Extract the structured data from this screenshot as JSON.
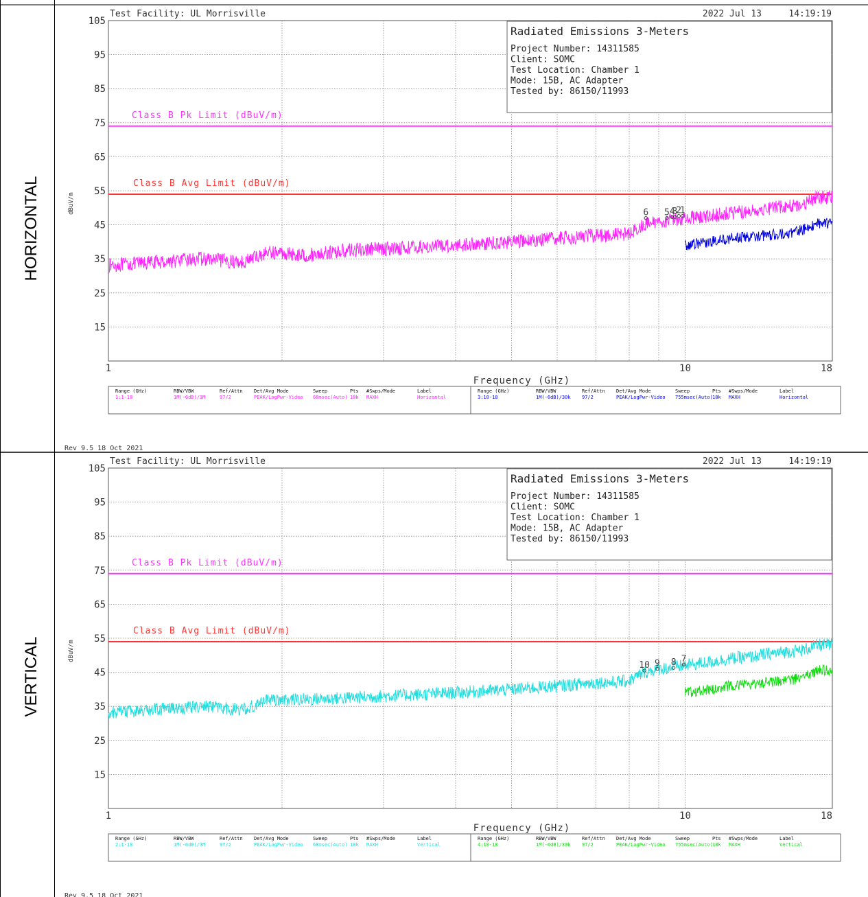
{
  "row_labels": [
    "HORIZONTAL",
    "VERTICAL"
  ],
  "chart_data": [
    {
      "type": "line",
      "facility": "Test Facility:  UL Morrisville",
      "date": "2022 Jul 13",
      "time": "14:19:19",
      "info_title": "Radiated Emissions 3-Meters",
      "info_lines": [
        "Project Number: 14311585",
        "Client: SOMC",
        "Test Location: Chamber 1",
        "Mode: 15B, AC Adapter",
        "Tested by: 86150/11993"
      ],
      "xlabel": "Frequency (GHz)",
      "ylabel": "dBuV/m",
      "xscale": "log",
      "xlim": [
        1,
        18
      ],
      "ylim": [
        5,
        105
      ],
      "yticks": [
        "105",
        "95",
        "85",
        "75",
        "65",
        "55",
        "45",
        "35",
        "25",
        "15"
      ],
      "xticks": [
        {
          "label": "1",
          "value": 1
        },
        {
          "label": "10",
          "value": 10
        },
        {
          "label": "18",
          "value": 18
        }
      ],
      "grid": true,
      "limits": [
        {
          "name": "Class B Pk Limit (dBuV/m)",
          "value": 74,
          "color": "#ff33ff"
        },
        {
          "name": "Class B Avg Limit (dBuV/m)",
          "value": 54,
          "color": "#ff3333"
        }
      ],
      "series": [
        {
          "color": "#ff22ff",
          "noise": 1.3,
          "x": [
            1,
            1.2,
            1.45,
            1.7,
            1.9,
            2.2,
            2.6,
            3,
            3.5,
            4,
            4.5,
            5,
            5.5,
            6,
            6.5,
            7,
            7.5,
            8,
            8.5,
            9,
            9.5,
            10,
            11,
            12,
            13,
            14,
            15,
            16,
            17,
            18
          ],
          "y": [
            33,
            34,
            35,
            34,
            37,
            36,
            37.5,
            38,
            38.5,
            39,
            39.5,
            40,
            40.5,
            41,
            41.5,
            42,
            42,
            42.5,
            45,
            46,
            46.5,
            47,
            47.5,
            48.5,
            49,
            50,
            50.5,
            51,
            53,
            53
          ]
        },
        {
          "color": "#0000dd",
          "noise": 1.0,
          "x": [
            10,
            11,
            12,
            13,
            14,
            15,
            16,
            17,
            18
          ],
          "y": [
            39,
            40,
            41,
            41.5,
            42,
            42.5,
            43.5,
            45.5,
            45.5
          ]
        }
      ],
      "markers": [
        {
          "label": "6",
          "x": 8.55,
          "y": 47
        },
        {
          "label": "5",
          "x": 9.3,
          "y": 47
        },
        {
          "label": "4",
          "x": 9.5,
          "y": 47.3
        },
        {
          "label": "3",
          "x": 9.6,
          "y": 47.3
        },
        {
          "label": "2",
          "x": 9.75,
          "y": 47.6
        },
        {
          "label": "1",
          "x": 9.9,
          "y": 47.6
        }
      ],
      "footer": {
        "headers": [
          "Range (GHz)",
          "RBW/VBW",
          "Ref/Attn",
          "Det/Avg Mode",
          "Sweep",
          "Pts",
          "#Swps/Mode",
          "Label"
        ],
        "rows": [
          {
            "color": "#ff22ff",
            "values": [
              "1:1-18",
              "1M(-6dB)/3M",
              "97/2",
              "PEAK/LogPwr-Video",
              "68msec(Auto)",
              "18k",
              "MAXH",
              "Horizontal"
            ]
          },
          {
            "color": "#0000dd",
            "values": [
              "3:10-18",
              "1M(-6dB)/30k",
              "97/2",
              "PEAK/LogPwr-Video",
              "755msec(Auto)",
              "18k",
              "MAXH",
              "Horizontal"
            ]
          }
        ]
      },
      "rev": "Rev 9.5 18 Oct 2021"
    },
    {
      "type": "line",
      "facility": "Test Facility:  UL Morrisville",
      "date": "2022 Jul 13",
      "time": "14:19:19",
      "info_title": "Radiated Emissions 3-Meters",
      "info_lines": [
        "Project Number: 14311585",
        "Client: SOMC",
        "Test Location: Chamber 1",
        "Mode: 15B, AC Adapter",
        "Tested by: 86150/11993"
      ],
      "xlabel": "Frequency (GHz)",
      "ylabel": "dBuV/m",
      "xscale": "log",
      "xlim": [
        1,
        18
      ],
      "ylim": [
        5,
        105
      ],
      "yticks": [
        "105",
        "95",
        "85",
        "75",
        "65",
        "55",
        "45",
        "35",
        "25",
        "15"
      ],
      "xticks": [
        {
          "label": "1",
          "value": 1
        },
        {
          "label": "10",
          "value": 10
        },
        {
          "label": "18",
          "value": 18
        }
      ],
      "grid": true,
      "limits": [
        {
          "name": "Class B Pk Limit (dBuV/m)",
          "value": 74,
          "color": "#ff33ff"
        },
        {
          "name": "Class B Avg Limit (dBuV/m)",
          "value": 54,
          "color": "#ff3333"
        }
      ],
      "series": [
        {
          "color": "#22dddd",
          "noise": 1.2,
          "x": [
            1,
            1.2,
            1.45,
            1.7,
            1.9,
            2.2,
            2.6,
            3,
            3.5,
            4,
            4.5,
            5,
            5.5,
            6,
            6.5,
            7,
            7.5,
            8,
            8.5,
            9,
            9.5,
            10,
            11,
            12,
            13,
            14,
            15,
            16,
            17,
            18
          ],
          "y": [
            33,
            34,
            35,
            34,
            37,
            37,
            37.5,
            38,
            38.5,
            39,
            39.5,
            40,
            40.5,
            41,
            41.5,
            42,
            42,
            42.5,
            45,
            46,
            46.5,
            47,
            48,
            49,
            49.5,
            50.5,
            51,
            51.5,
            53,
            53
          ]
        },
        {
          "color": "#11dd11",
          "noise": 1.0,
          "x": [
            10,
            11,
            12,
            13,
            14,
            15,
            16,
            17,
            18
          ],
          "y": [
            39,
            40,
            41,
            41.5,
            42,
            42.5,
            43.5,
            45.5,
            45.5
          ]
        }
      ],
      "markers": [
        {
          "label": "10",
          "x": 8.5,
          "y": 45.5
        },
        {
          "label": "9",
          "x": 8.95,
          "y": 46
        },
        {
          "label": "8",
          "x": 9.55,
          "y": 46.3
        },
        {
          "label": "7",
          "x": 9.95,
          "y": 47.3
        }
      ],
      "footer": {
        "headers": [
          "Range (GHz)",
          "RBW/VBW",
          "Ref/Attn",
          "Det/Avg Mode",
          "Sweep",
          "Pts",
          "#Swps/Mode",
          "Label"
        ],
        "rows": [
          {
            "color": "#22dddd",
            "values": [
              "2:1-18",
              "1M(-6dB)/3M",
              "97/2",
              "PEAK/LogPwr-Video",
              "68msec(Auto)",
              "18k",
              "MAXH",
              "Vertical"
            ]
          },
          {
            "color": "#11dd11",
            "values": [
              "4:10-18",
              "1M(-6dB)/30k",
              "97/2",
              "PEAK/LogPwr-Video",
              "755msec(Auto)",
              "18k",
              "MAXH",
              "Vertical"
            ]
          }
        ]
      },
      "rev": "Rev 9.5 18 Oct 2021"
    }
  ]
}
